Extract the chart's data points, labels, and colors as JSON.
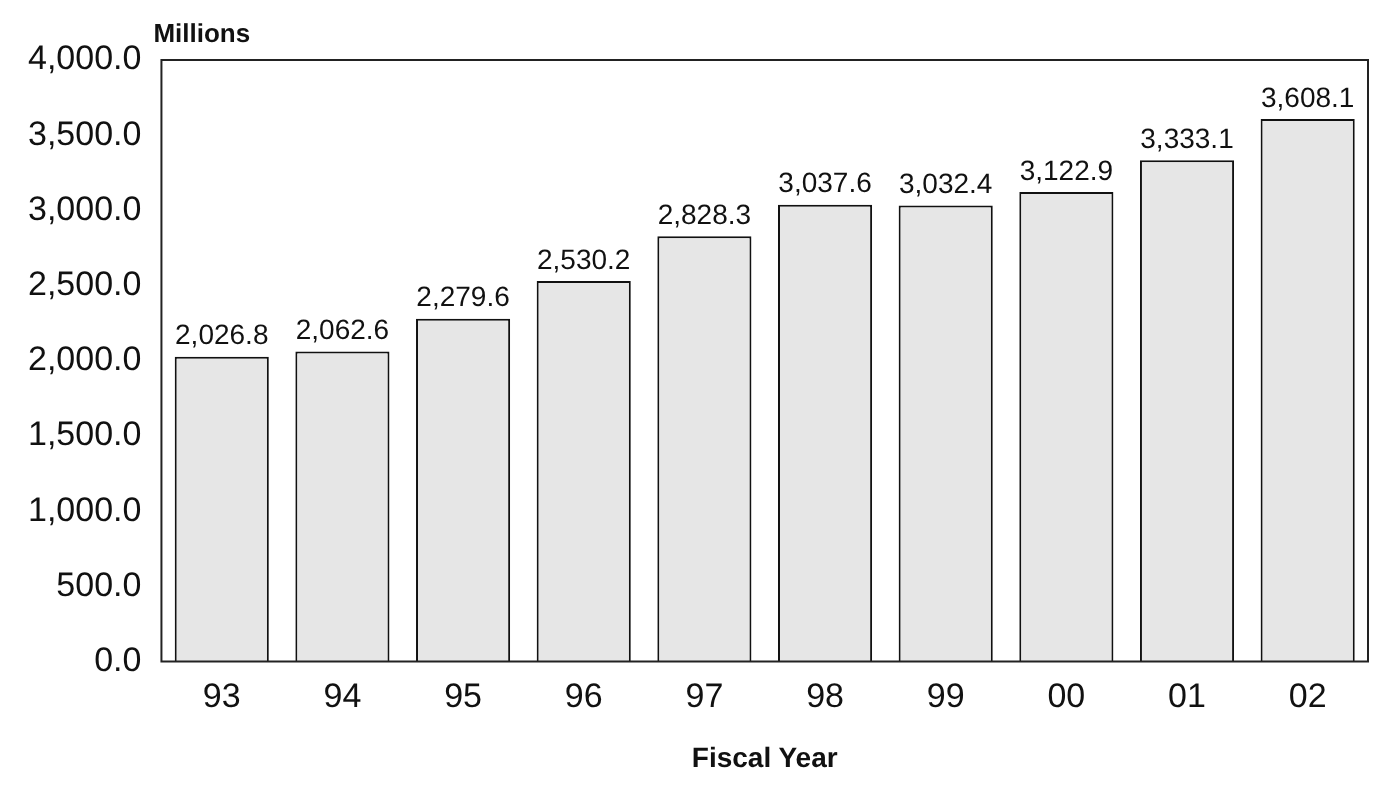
{
  "chart_data": {
    "type": "bar",
    "ylabel": "Millions",
    "xlabel": "Fiscal Year",
    "categories": [
      "93",
      "94",
      "95",
      "96",
      "97",
      "98",
      "99",
      "00",
      "01",
      "02"
    ],
    "values": [
      2026.8,
      2062.6,
      2279.6,
      2530.2,
      2828.3,
      3037.6,
      3032.4,
      3122.9,
      3333.1,
      3608.1
    ],
    "value_labels": [
      "2,026.8",
      "2,062.6",
      "2,279.6",
      "2,530.2",
      "2,828.3",
      "3,037.6",
      "3,032.4",
      "3,122.9",
      "3,333.1",
      "3,608.1"
    ],
    "color": "#e6e6e6",
    "ylim": [
      0,
      4000
    ],
    "yticks": [
      {
        "value": 0,
        "label": "0.0"
      },
      {
        "value": 500,
        "label": "500.0"
      },
      {
        "value": 1000,
        "label": "1,000.0"
      },
      {
        "value": 1500,
        "label": "1,500.0"
      },
      {
        "value": 2000,
        "label": "2,000.0"
      },
      {
        "value": 2500,
        "label": "2,500.0"
      },
      {
        "value": 3000,
        "label": "3,000.0"
      },
      {
        "value": 3500,
        "label": "3,500.0"
      },
      {
        "value": 4000,
        "label": "4,000.0"
      }
    ],
    "grid": false,
    "legend": false
  }
}
